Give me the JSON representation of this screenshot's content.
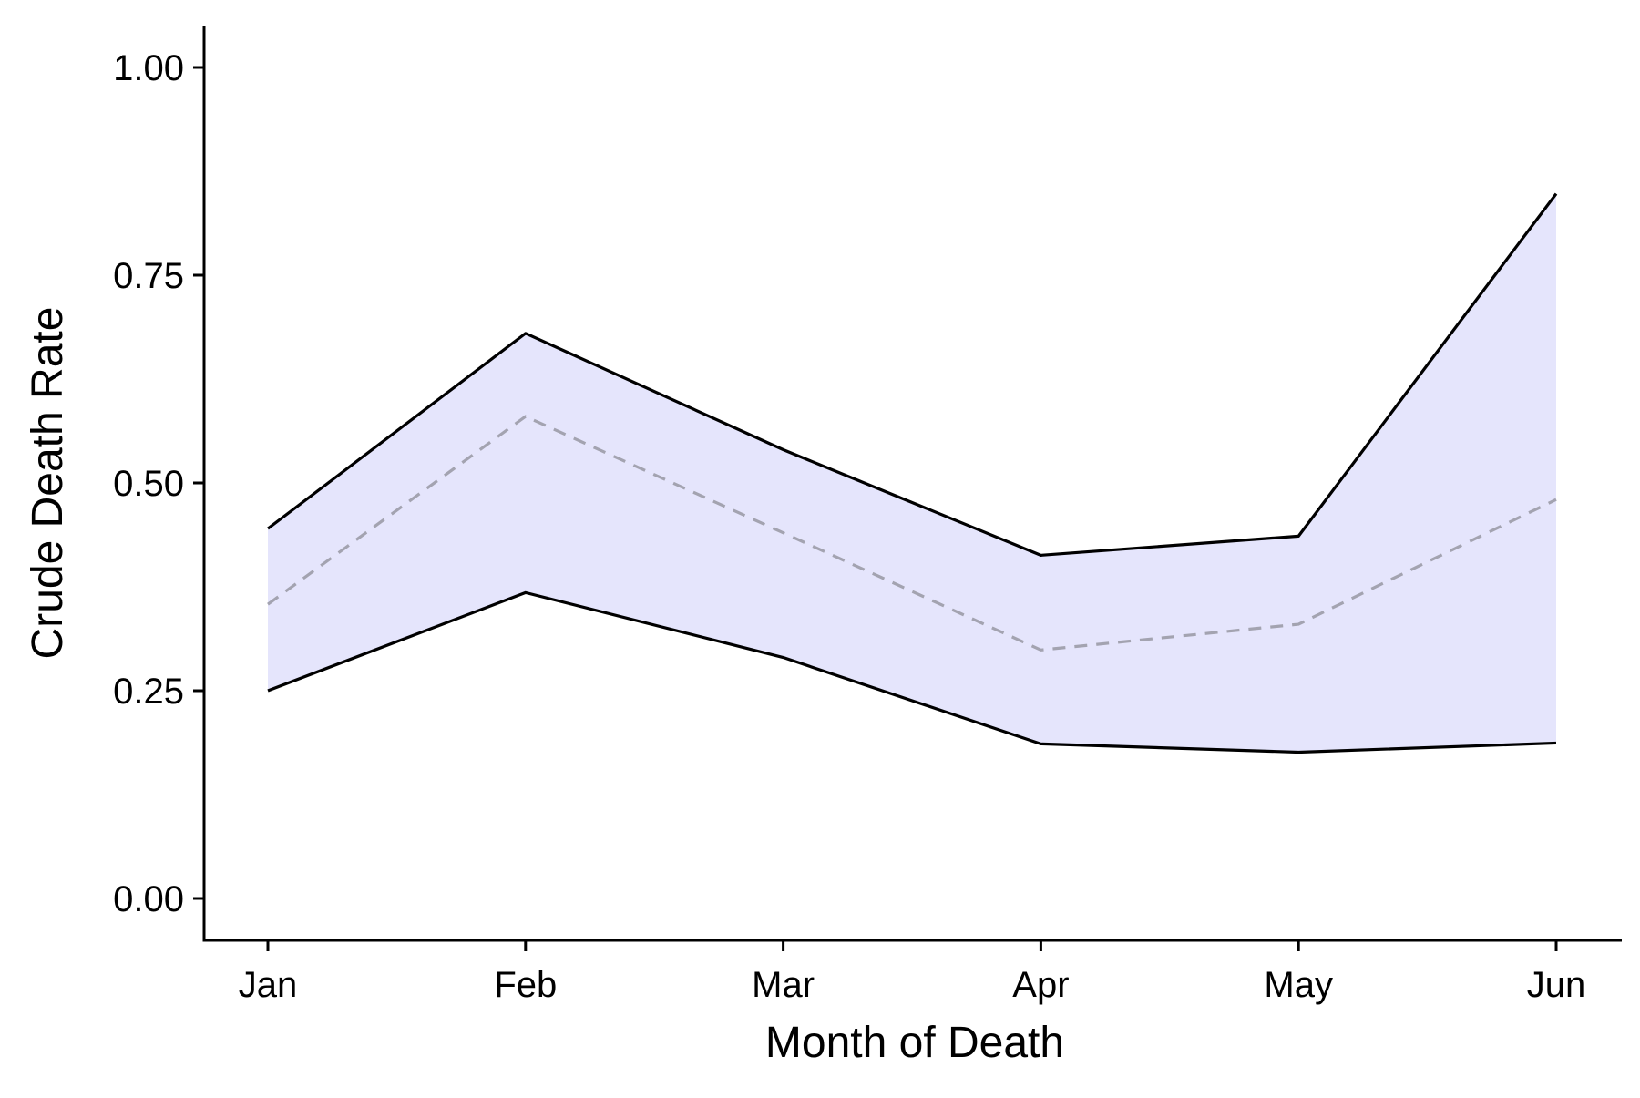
{
  "chart_data": {
    "type": "area",
    "title": "",
    "xlabel": "Month of Death",
    "ylabel": "Crude Death Rate",
    "categories": [
      "Jan",
      "Feb",
      "Mar",
      "Apr",
      "May",
      "Jun"
    ],
    "ylim": [
      -0.05,
      1.05
    ],
    "yticks": [
      0.0,
      0.25,
      0.5,
      0.75,
      1.0
    ],
    "ytick_labels": [
      "0.00",
      "0.25",
      "0.50",
      "0.75",
      "1.00"
    ],
    "series": [
      {
        "role": "upper",
        "values": [
          0.445,
          0.68,
          0.54,
          0.413,
          0.436,
          0.848
        ]
      },
      {
        "role": "estimate",
        "values": [
          0.354,
          0.58,
          0.44,
          0.299,
          0.33,
          0.48
        ]
      },
      {
        "role": "lower",
        "values": [
          0.25,
          0.368,
          0.29,
          0.186,
          0.176,
          0.187
        ]
      }
    ],
    "grid": false,
    "legend": "none",
    "colors": {
      "band_fill": "#e5e5fc",
      "bound_line": "#000000",
      "estimate_line": "#a3a3b0",
      "axis": "#000000"
    }
  }
}
